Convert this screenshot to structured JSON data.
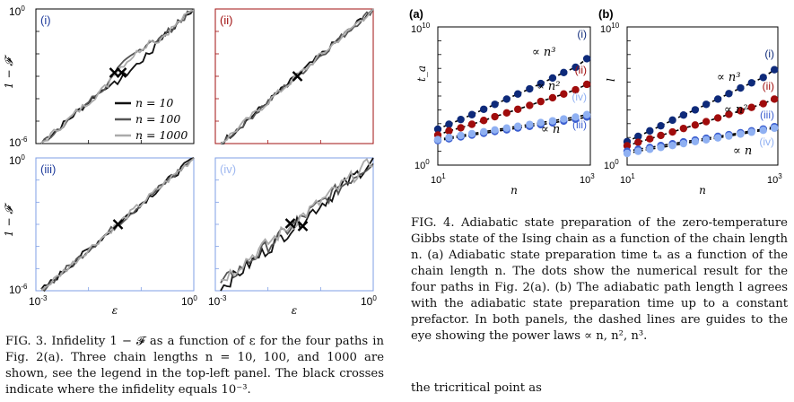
{
  "fig3": {
    "panels": [
      {
        "tag": "(i)",
        "color": "#1f3c9c",
        "frame": "#000000"
      },
      {
        "tag": "(ii)",
        "color": "#a01010",
        "frame": "#a01010"
      },
      {
        "tag": "(iii)",
        "color": "#1f3c9c",
        "frame": "#7f9fe6"
      },
      {
        "tag": "(iv)",
        "color": "#9fb8f0",
        "frame": "#7f9fe6"
      }
    ],
    "ylabel": "1 − 𝓕",
    "xlabel": "ε",
    "ytick_top": "10",
    "ytick_top_exp": "0",
    "ytick_bot": "10",
    "ytick_bot_exp": "-6",
    "xtick_left": "10",
    "xtick_left_exp": "-3",
    "xtick_right": "10",
    "xtick_right_exp": "0",
    "legend": [
      {
        "label": "n = 10",
        "color": "#111111"
      },
      {
        "label": "n = 100",
        "color": "#555555"
      },
      {
        "label": "n = 1000",
        "color": "#aaaaaa"
      }
    ],
    "caption_lead": "FIG. 3.",
    "caption_text": "Infidelity 1 − 𝓕 as a function of ε for the four paths in Fig. 2(a). Three chain lengths n = 10, 100, and 1000 are shown, see the legend in the top-left panel. The black crosses indicate where the infidelity equals 10⁻³."
  },
  "fig4": {
    "panel_a_tag": "(a)",
    "panel_b_tag": "(b)",
    "ylabel_a": "t_a",
    "ylabel_b": "l",
    "xlabel": "n",
    "ytick_top": "10",
    "ytick_top_exp": "10",
    "ytick_bot": "10",
    "ytick_bot_exp": "0",
    "xtick_left": "10",
    "xtick_left_exp": "1",
    "xtick_right": "10",
    "xtick_right_exp": "3",
    "ann_n3": "∝ n³",
    "ann_n2": "∝ n²",
    "ann_n": "∝ n",
    "series_labels": [
      "(i)",
      "(ii)",
      "(iv)",
      "(iii)"
    ],
    "series_labels_b": [
      "(i)",
      "(ii)",
      "(iii)",
      "(iv)"
    ],
    "colors": {
      "i": "#0e2a7a",
      "ii": "#a00c0c",
      "iii": "#3c5fd0",
      "iv": "#8fb0f2"
    },
    "caption_lead": "FIG. 4.",
    "caption_text": "Adiabatic state preparation of the zero-temperature Gibbs state of the Ising chain as a function of the chain length n. (a) Adiabatic state preparation time tₐ as a function of the chain length n. The dots show the numerical result for the four paths in Fig. 2(a). (b) The adiabatic path length l agrees with the adiabatic state preparation time up to a constant prefactor. In both panels, the dashed lines are guides to the eye showing the power laws ∝ n, n², n³."
  },
  "footer_text": "the tricritical point as",
  "chart_data": [
    {
      "type": "line",
      "title": "",
      "xlabel": "ε",
      "ylabel": "1 − 𝓕",
      "xscale": "log",
      "yscale": "log",
      "xlim": [
        0.001,
        1
      ],
      "ylim": [
        1e-06,
        1
      ],
      "series": [
        {
          "name": "n = 10"
        },
        {
          "name": "n = 100"
        },
        {
          "name": "n = 1000"
        }
      ]
    },
    {
      "type": "scatter",
      "xlabel": "n",
      "ylabel": "t_a",
      "xscale": "log",
      "yscale": "log",
      "xlim": [
        10,
        1000
      ],
      "ylim": [
        1,
        10000000000
      ],
      "x": [
        10,
        14,
        20,
        28,
        40,
        56,
        80,
        112,
        160,
        224,
        320,
        448,
        640,
        900
      ],
      "series": [
        {
          "name": "(i)",
          "values": [
            400,
            900,
            2000,
            4500,
            11000,
            25000,
            60000,
            140000,
            330000,
            800000,
            2000000,
            5000000,
            12000000,
            50000000
          ]
        },
        {
          "name": "(ii)",
          "values": [
            150,
            300,
            500,
            900,
            1700,
            3200,
            6000,
            11000,
            21000,
            40000,
            75000,
            140000,
            280000,
            700000
          ]
        },
        {
          "name": "(iii)",
          "values": [
            60,
            80,
            110,
            150,
            200,
            270,
            360,
            480,
            640,
            850,
            1150,
            1550,
            2100,
            3000
          ]
        },
        {
          "name": "(iv)",
          "values": [
            70,
            100,
            140,
            190,
            260,
            350,
            480,
            650,
            880,
            1200,
            1600,
            2200,
            3000,
            4500
          ]
        }
      ]
    },
    {
      "type": "scatter",
      "xlabel": "n",
      "ylabel": "l",
      "xscale": "log",
      "yscale": "log",
      "xlim": [
        10,
        1000
      ],
      "ylim": [
        1,
        10000000000
      ],
      "x": [
        10,
        14,
        20,
        28,
        40,
        56,
        80,
        112,
        160,
        224,
        320,
        448,
        640,
        900
      ],
      "series": [
        {
          "name": "(i)",
          "values": [
            50,
            120,
            300,
            700,
            1800,
            4200,
            10000,
            25000,
            60000,
            150000,
            380000,
            900000,
            2200000,
            8000000
          ]
        },
        {
          "name": "(ii)",
          "values": [
            25,
            45,
            80,
            140,
            250,
            450,
            800,
            1400,
            2600,
            4700,
            8500,
            15000,
            28000,
            60000
          ]
        },
        {
          "name": "(iii)",
          "values": [
            10,
            14,
            19,
            26,
            35,
            48,
            65,
            88,
            120,
            160,
            220,
            300,
            410,
            600
          ]
        },
        {
          "name": "(iv)",
          "values": [
            7,
            10,
            14,
            19,
            26,
            36,
            50,
            68,
            93,
            127,
            175,
            240,
            330,
            470
          ]
        }
      ]
    }
  ]
}
